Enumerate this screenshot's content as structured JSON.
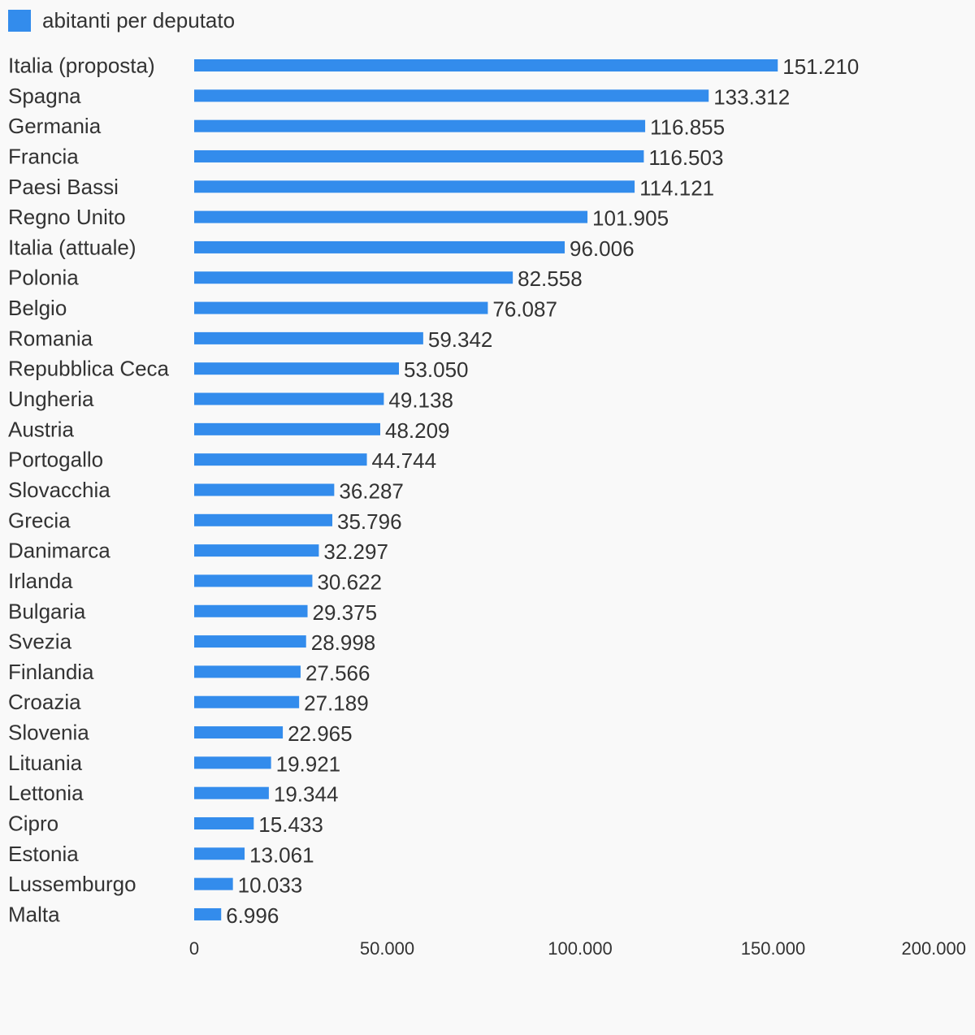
{
  "chart_data": {
    "type": "bar",
    "orientation": "horizontal",
    "legend_position": "top-left",
    "grid": false,
    "series": [
      {
        "name": "abitanti per deputato",
        "color": "#338cec",
        "values": [
          151210,
          133312,
          116855,
          116503,
          114121,
          101905,
          96006,
          82558,
          76087,
          59342,
          53050,
          49138,
          48209,
          44744,
          36287,
          35796,
          32297,
          30622,
          29375,
          28998,
          27566,
          27189,
          22965,
          19921,
          19344,
          15433,
          13061,
          10033,
          6996
        ]
      }
    ],
    "categories": [
      "Italia (proposta)",
      "Spagna",
      "Germania",
      "Francia",
      "Paesi Bassi",
      "Regno Unito",
      "Italia (attuale)",
      "Polonia",
      "Belgio",
      "Romania",
      "Repubblica Ceca",
      "Ungheria",
      "Austria",
      "Portogallo",
      "Slovacchia",
      "Grecia",
      "Danimarca",
      "Irlanda",
      "Bulgaria",
      "Svezia",
      "Finlandia",
      "Croazia",
      "Slovenia",
      "Lituania",
      "Lettonia",
      "Cipro",
      "Estonia",
      "Lussemburgo",
      "Malta"
    ],
    "value_labels": [
      "151.210",
      "133.312",
      "116.855",
      "116.503",
      "114.121",
      "101.905",
      "96.006",
      "82.558",
      "76.087",
      "59.342",
      "53.050",
      "49.138",
      "48.209",
      "44.744",
      "36.287",
      "35.796",
      "32.297",
      "30.622",
      "29.375",
      "28.998",
      "27.566",
      "27.189",
      "22.965",
      "19.921",
      "19.344",
      "15.433",
      "13.061",
      "10.033",
      "6.996"
    ],
    "xlim": [
      0,
      200000
    ],
    "x_ticks": [
      0,
      50000,
      100000,
      150000,
      200000
    ],
    "x_tick_labels": [
      "0",
      "50.000",
      "100.000",
      "150.000",
      "200.000"
    ]
  }
}
